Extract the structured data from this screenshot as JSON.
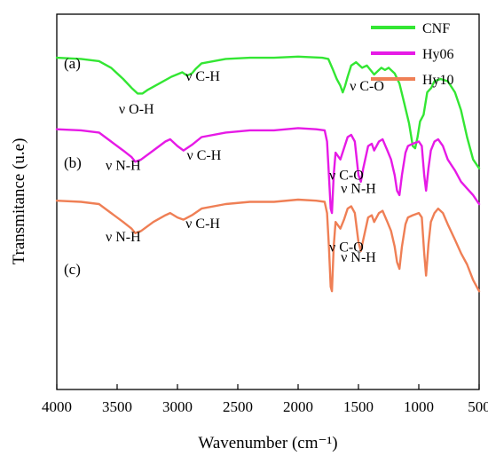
{
  "chart_data": {
    "type": "line",
    "xlabel": "Wavenumber (cm⁻¹)",
    "ylabel": "Transmitance (u.e)",
    "xlim": [
      4000,
      500
    ],
    "x_reversed": true,
    "xticks": [
      4000,
      3500,
      3000,
      2500,
      2000,
      1500,
      1000,
      500
    ],
    "y_tick_labels": false,
    "grid": false,
    "legend_position": "top-right",
    "series": [
      {
        "name": "CNF",
        "color": "#33e633",
        "panel_label": "(a)",
        "offset": 0.64,
        "points": [
          [
            4000,
            0.955
          ],
          [
            3800,
            0.95
          ],
          [
            3650,
            0.94
          ],
          [
            3550,
            0.91
          ],
          [
            3450,
            0.86
          ],
          [
            3380,
            0.82
          ],
          [
            3330,
            0.795
          ],
          [
            3290,
            0.795
          ],
          [
            3250,
            0.81
          ],
          [
            3150,
            0.84
          ],
          [
            3050,
            0.87
          ],
          [
            2960,
            0.89
          ],
          [
            2920,
            0.875
          ],
          [
            2880,
            0.885
          ],
          [
            2850,
            0.905
          ],
          [
            2800,
            0.93
          ],
          [
            2600,
            0.95
          ],
          [
            2400,
            0.955
          ],
          [
            2200,
            0.955
          ],
          [
            2000,
            0.96
          ],
          [
            1800,
            0.955
          ],
          [
            1750,
            0.95
          ],
          [
            1710,
            0.9
          ],
          [
            1680,
            0.86
          ],
          [
            1650,
            0.83
          ],
          [
            1630,
            0.8
          ],
          [
            1610,
            0.83
          ],
          [
            1590,
            0.87
          ],
          [
            1560,
            0.92
          ],
          [
            1520,
            0.935
          ],
          [
            1470,
            0.91
          ],
          [
            1430,
            0.92
          ],
          [
            1370,
            0.88
          ],
          [
            1330,
            0.9
          ],
          [
            1310,
            0.91
          ],
          [
            1280,
            0.9
          ],
          [
            1250,
            0.91
          ],
          [
            1200,
            0.885
          ],
          [
            1160,
            0.84
          ],
          [
            1120,
            0.75
          ],
          [
            1080,
            0.66
          ],
          [
            1050,
            0.56
          ],
          [
            1030,
            0.55
          ],
          [
            1010,
            0.6
          ],
          [
            990,
            0.67
          ],
          [
            960,
            0.7
          ],
          [
            930,
            0.8
          ],
          [
            897,
            0.82
          ],
          [
            870,
            0.85
          ],
          [
            820,
            0.86
          ],
          [
            760,
            0.85
          ],
          [
            700,
            0.8
          ],
          [
            650,
            0.72
          ],
          [
            600,
            0.6
          ],
          [
            550,
            0.5
          ],
          [
            500,
            0.46
          ]
        ]
      },
      {
        "name": "Hy06",
        "color": "#e61ae6",
        "panel_label": "(b)",
        "offset": 0.32,
        "points": [
          [
            4000,
            0.955
          ],
          [
            3800,
            0.95
          ],
          [
            3650,
            0.94
          ],
          [
            3550,
            0.9
          ],
          [
            3450,
            0.86
          ],
          [
            3380,
            0.83
          ],
          [
            3350,
            0.81
          ],
          [
            3300,
            0.82
          ],
          [
            3200,
            0.86
          ],
          [
            3100,
            0.9
          ],
          [
            3060,
            0.91
          ],
          [
            3000,
            0.88
          ],
          [
            2950,
            0.86
          ],
          [
            2880,
            0.885
          ],
          [
            2800,
            0.92
          ],
          [
            2600,
            0.94
          ],
          [
            2400,
            0.95
          ],
          [
            2200,
            0.95
          ],
          [
            2000,
            0.96
          ],
          [
            1850,
            0.955
          ],
          [
            1780,
            0.95
          ],
          [
            1760,
            0.9
          ],
          [
            1745,
            0.75
          ],
          [
            1730,
            0.6
          ],
          [
            1720,
            0.58
          ],
          [
            1705,
            0.75
          ],
          [
            1690,
            0.85
          ],
          [
            1650,
            0.82
          ],
          [
            1620,
            0.87
          ],
          [
            1590,
            0.92
          ],
          [
            1560,
            0.93
          ],
          [
            1530,
            0.9
          ],
          [
            1500,
            0.75
          ],
          [
            1480,
            0.72
          ],
          [
            1460,
            0.78
          ],
          [
            1420,
            0.88
          ],
          [
            1390,
            0.89
          ],
          [
            1370,
            0.86
          ],
          [
            1330,
            0.9
          ],
          [
            1300,
            0.91
          ],
          [
            1260,
            0.86
          ],
          [
            1230,
            0.82
          ],
          [
            1200,
            0.75
          ],
          [
            1180,
            0.68
          ],
          [
            1160,
            0.66
          ],
          [
            1140,
            0.75
          ],
          [
            1110,
            0.85
          ],
          [
            1090,
            0.88
          ],
          [
            1050,
            0.89
          ],
          [
            1000,
            0.9
          ],
          [
            975,
            0.88
          ],
          [
            955,
            0.75
          ],
          [
            940,
            0.68
          ],
          [
            920,
            0.78
          ],
          [
            900,
            0.86
          ],
          [
            870,
            0.9
          ],
          [
            840,
            0.91
          ],
          [
            800,
            0.88
          ],
          [
            760,
            0.82
          ],
          [
            700,
            0.77
          ],
          [
            650,
            0.72
          ],
          [
            600,
            0.69
          ],
          [
            550,
            0.66
          ],
          [
            500,
            0.62
          ]
        ]
      },
      {
        "name": "Hy10",
        "color": "#ef7f55",
        "panel_label": "(c)",
        "offset": 0.0,
        "points": [
          [
            4000,
            0.955
          ],
          [
            3800,
            0.95
          ],
          [
            3650,
            0.94
          ],
          [
            3550,
            0.9
          ],
          [
            3450,
            0.86
          ],
          [
            3380,
            0.83
          ],
          [
            3350,
            0.81
          ],
          [
            3300,
            0.82
          ],
          [
            3200,
            0.86
          ],
          [
            3100,
            0.89
          ],
          [
            3060,
            0.9
          ],
          [
            3000,
            0.88
          ],
          [
            2950,
            0.87
          ],
          [
            2880,
            0.89
          ],
          [
            2800,
            0.92
          ],
          [
            2600,
            0.94
          ],
          [
            2400,
            0.95
          ],
          [
            2200,
            0.95
          ],
          [
            2000,
            0.96
          ],
          [
            1850,
            0.955
          ],
          [
            1780,
            0.95
          ],
          [
            1760,
            0.9
          ],
          [
            1745,
            0.75
          ],
          [
            1730,
            0.57
          ],
          [
            1720,
            0.55
          ],
          [
            1705,
            0.75
          ],
          [
            1690,
            0.86
          ],
          [
            1650,
            0.83
          ],
          [
            1620,
            0.87
          ],
          [
            1590,
            0.92
          ],
          [
            1560,
            0.93
          ],
          [
            1530,
            0.9
          ],
          [
            1500,
            0.77
          ],
          [
            1480,
            0.73
          ],
          [
            1460,
            0.78
          ],
          [
            1420,
            0.88
          ],
          [
            1390,
            0.89
          ],
          [
            1370,
            0.86
          ],
          [
            1330,
            0.9
          ],
          [
            1300,
            0.91
          ],
          [
            1260,
            0.86
          ],
          [
            1230,
            0.82
          ],
          [
            1200,
            0.75
          ],
          [
            1180,
            0.68
          ],
          [
            1160,
            0.65
          ],
          [
            1140,
            0.75
          ],
          [
            1110,
            0.85
          ],
          [
            1090,
            0.88
          ],
          [
            1050,
            0.89
          ],
          [
            1000,
            0.9
          ],
          [
            975,
            0.88
          ],
          [
            955,
            0.72
          ],
          [
            940,
            0.62
          ],
          [
            920,
            0.76
          ],
          [
            900,
            0.86
          ],
          [
            870,
            0.9
          ],
          [
            840,
            0.92
          ],
          [
            800,
            0.9
          ],
          [
            760,
            0.85
          ],
          [
            700,
            0.78
          ],
          [
            650,
            0.72
          ],
          [
            600,
            0.67
          ],
          [
            550,
            0.6
          ],
          [
            500,
            0.55
          ]
        ]
      }
    ],
    "annotations": [
      {
        "text": "ν O-H",
        "x": 3340,
        "series": "CNF"
      },
      {
        "text": "ν C-H",
        "x": 2790,
        "series": "CNF"
      },
      {
        "text": "ν C-O",
        "x": 1430,
        "series": "CNF"
      },
      {
        "text": "ν N-H",
        "x": 3450,
        "series": "Hy06"
      },
      {
        "text": "ν C-H",
        "x": 2780,
        "series": "Hy06"
      },
      {
        "text": "ν N-H",
        "x": 1500,
        "series": "Hy06"
      },
      {
        "text": "ν C-O",
        "x": 1600,
        "series": "Hy06"
      },
      {
        "text": "ν N-H",
        "x": 3450,
        "series": "Hy10"
      },
      {
        "text": "ν C-H",
        "x": 2790,
        "series": "Hy10"
      },
      {
        "text": "ν N-H",
        "x": 1500,
        "series": "Hy10"
      },
      {
        "text": "ν C-O",
        "x": 1600,
        "series": "Hy10"
      }
    ]
  }
}
